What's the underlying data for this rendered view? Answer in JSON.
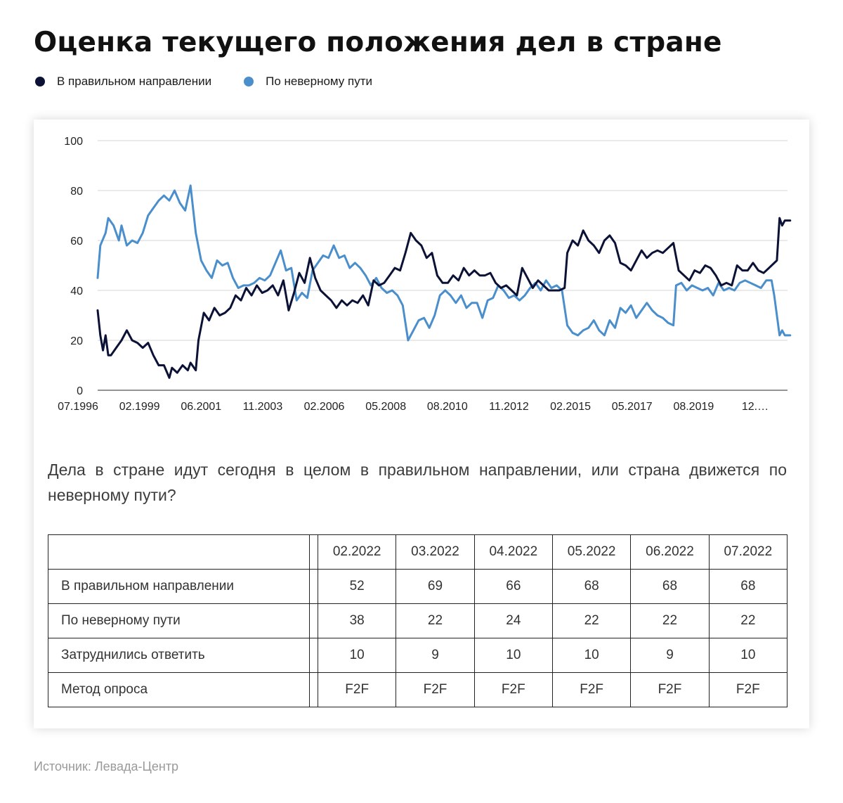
{
  "title": "Оценка текущего положения дел в стране",
  "legend": [
    {
      "label": "В правильном направлении",
      "color": "#0b1235"
    },
    {
      "label": "По неверному пути",
      "color": "#4a8fcc"
    }
  ],
  "chart_data": {
    "type": "line",
    "title": "Оценка текущего положения дел в стране",
    "xlabel": "",
    "ylabel": "",
    "ylim": [
      0,
      100
    ],
    "yticks": [
      "0",
      "20",
      "40",
      "60",
      "80",
      "100"
    ],
    "x_tick_labels": [
      "07.1996",
      "02.1999",
      "06.2001",
      "11.2003",
      "02.2006",
      "05.2008",
      "08.2010",
      "11.2012",
      "02.2015",
      "05.2017",
      "08.2019",
      "12.…"
    ],
    "x_range": [
      "07.1996",
      "07.2022"
    ],
    "grid": true,
    "legend_position": "top-left",
    "series": [
      {
        "name": "В правильном направлении",
        "color": "#0b1235",
        "points": [
          [
            1996.5,
            32
          ],
          [
            1996.6,
            22
          ],
          [
            1996.7,
            16
          ],
          [
            1996.8,
            22
          ],
          [
            1996.9,
            14
          ],
          [
            1997.0,
            14
          ],
          [
            1997.2,
            17
          ],
          [
            1997.4,
            20
          ],
          [
            1997.6,
            24
          ],
          [
            1997.8,
            20
          ],
          [
            1998.0,
            19
          ],
          [
            1998.2,
            17
          ],
          [
            1998.4,
            19
          ],
          [
            1998.6,
            14
          ],
          [
            1998.8,
            10
          ],
          [
            1999.0,
            10
          ],
          [
            1999.2,
            5
          ],
          [
            1999.3,
            9
          ],
          [
            1999.5,
            7
          ],
          [
            1999.7,
            10
          ],
          [
            1999.9,
            8
          ],
          [
            2000.0,
            11
          ],
          [
            2000.2,
            8
          ],
          [
            2000.3,
            20
          ],
          [
            2000.5,
            31
          ],
          [
            2000.7,
            28
          ],
          [
            2000.9,
            33
          ],
          [
            2001.1,
            30
          ],
          [
            2001.3,
            31
          ],
          [
            2001.5,
            33
          ],
          [
            2001.7,
            38
          ],
          [
            2001.9,
            36
          ],
          [
            2002.1,
            41
          ],
          [
            2002.3,
            38
          ],
          [
            2002.5,
            42
          ],
          [
            2002.7,
            39
          ],
          [
            2002.9,
            40
          ],
          [
            2003.1,
            42
          ],
          [
            2003.3,
            38
          ],
          [
            2003.5,
            44
          ],
          [
            2003.7,
            32
          ],
          [
            2003.9,
            39
          ],
          [
            2004.1,
            47
          ],
          [
            2004.3,
            43
          ],
          [
            2004.5,
            53
          ],
          [
            2004.7,
            45
          ],
          [
            2004.9,
            40
          ],
          [
            2005.1,
            38
          ],
          [
            2005.3,
            36
          ],
          [
            2005.5,
            33
          ],
          [
            2005.7,
            36
          ],
          [
            2005.9,
            34
          ],
          [
            2006.1,
            36
          ],
          [
            2006.3,
            35
          ],
          [
            2006.5,
            38
          ],
          [
            2006.7,
            34
          ],
          [
            2006.9,
            44
          ],
          [
            2007.1,
            42
          ],
          [
            2007.3,
            43
          ],
          [
            2007.5,
            46
          ],
          [
            2007.7,
            49
          ],
          [
            2007.9,
            48
          ],
          [
            2008.1,
            55
          ],
          [
            2008.3,
            63
          ],
          [
            2008.5,
            60
          ],
          [
            2008.7,
            58
          ],
          [
            2008.9,
            53
          ],
          [
            2009.1,
            55
          ],
          [
            2009.3,
            46
          ],
          [
            2009.5,
            43
          ],
          [
            2009.7,
            43
          ],
          [
            2009.9,
            46
          ],
          [
            2010.1,
            44
          ],
          [
            2010.3,
            49
          ],
          [
            2010.5,
            46
          ],
          [
            2010.7,
            48
          ],
          [
            2010.9,
            46
          ],
          [
            2011.1,
            46
          ],
          [
            2011.3,
            47
          ],
          [
            2011.5,
            43
          ],
          [
            2011.7,
            41
          ],
          [
            2011.9,
            42
          ],
          [
            2012.1,
            40
          ],
          [
            2012.3,
            38
          ],
          [
            2012.5,
            49
          ],
          [
            2012.7,
            45
          ],
          [
            2012.9,
            41
          ],
          [
            2013.1,
            44
          ],
          [
            2013.3,
            42
          ],
          [
            2013.5,
            40
          ],
          [
            2013.7,
            40
          ],
          [
            2013.9,
            40
          ],
          [
            2014.1,
            41
          ],
          [
            2014.2,
            55
          ],
          [
            2014.4,
            60
          ],
          [
            2014.6,
            58
          ],
          [
            2014.8,
            64
          ],
          [
            2015.0,
            60
          ],
          [
            2015.2,
            58
          ],
          [
            2015.4,
            55
          ],
          [
            2015.6,
            60
          ],
          [
            2015.8,
            62
          ],
          [
            2016.0,
            59
          ],
          [
            2016.2,
            51
          ],
          [
            2016.4,
            50
          ],
          [
            2016.6,
            48
          ],
          [
            2016.8,
            52
          ],
          [
            2017.0,
            56
          ],
          [
            2017.2,
            53
          ],
          [
            2017.4,
            55
          ],
          [
            2017.6,
            56
          ],
          [
            2017.8,
            55
          ],
          [
            2018.0,
            57
          ],
          [
            2018.2,
            59
          ],
          [
            2018.4,
            48
          ],
          [
            2018.6,
            46
          ],
          [
            2018.8,
            44
          ],
          [
            2019.0,
            48
          ],
          [
            2019.2,
            47
          ],
          [
            2019.4,
            50
          ],
          [
            2019.6,
            49
          ],
          [
            2019.8,
            46
          ],
          [
            2020.0,
            42
          ],
          [
            2020.2,
            43
          ],
          [
            2020.4,
            42
          ],
          [
            2020.6,
            50
          ],
          [
            2020.8,
            48
          ],
          [
            2021.0,
            48
          ],
          [
            2021.2,
            51
          ],
          [
            2021.4,
            48
          ],
          [
            2021.6,
            47
          ],
          [
            2021.8,
            49
          ],
          [
            2022.1,
            52
          ],
          [
            2022.2,
            69
          ],
          [
            2022.3,
            66
          ],
          [
            2022.4,
            68
          ],
          [
            2022.5,
            68
          ],
          [
            2022.6,
            68
          ]
        ]
      },
      {
        "name": "По неверному пути",
        "color": "#4a8fcc",
        "points": [
          [
            1996.5,
            45
          ],
          [
            1996.6,
            58
          ],
          [
            1996.8,
            63
          ],
          [
            1996.9,
            69
          ],
          [
            1997.1,
            66
          ],
          [
            1997.3,
            60
          ],
          [
            1997.4,
            66
          ],
          [
            1997.6,
            58
          ],
          [
            1997.8,
            60
          ],
          [
            1998.0,
            59
          ],
          [
            1998.2,
            63
          ],
          [
            1998.4,
            70
          ],
          [
            1998.6,
            73
          ],
          [
            1998.8,
            76
          ],
          [
            1999.0,
            78
          ],
          [
            1999.2,
            76
          ],
          [
            1999.4,
            80
          ],
          [
            1999.6,
            75
          ],
          [
            1999.8,
            72
          ],
          [
            2000.0,
            82
          ],
          [
            2000.2,
            63
          ],
          [
            2000.4,
            52
          ],
          [
            2000.6,
            48
          ],
          [
            2000.8,
            45
          ],
          [
            2001.0,
            52
          ],
          [
            2001.2,
            50
          ],
          [
            2001.4,
            51
          ],
          [
            2001.6,
            45
          ],
          [
            2001.8,
            41
          ],
          [
            2002.0,
            42
          ],
          [
            2002.2,
            42
          ],
          [
            2002.4,
            43
          ],
          [
            2002.6,
            45
          ],
          [
            2002.8,
            44
          ],
          [
            2003.0,
            46
          ],
          [
            2003.2,
            51
          ],
          [
            2003.4,
            56
          ],
          [
            2003.6,
            48
          ],
          [
            2003.8,
            49
          ],
          [
            2004.0,
            36
          ],
          [
            2004.2,
            39
          ],
          [
            2004.4,
            37
          ],
          [
            2004.6,
            48
          ],
          [
            2004.8,
            51
          ],
          [
            2005.0,
            54
          ],
          [
            2005.2,
            53
          ],
          [
            2005.4,
            58
          ],
          [
            2005.6,
            53
          ],
          [
            2005.8,
            54
          ],
          [
            2006.0,
            49
          ],
          [
            2006.2,
            51
          ],
          [
            2006.4,
            49
          ],
          [
            2006.6,
            46
          ],
          [
            2006.8,
            42
          ],
          [
            2007.0,
            45
          ],
          [
            2007.2,
            41
          ],
          [
            2007.4,
            39
          ],
          [
            2007.6,
            40
          ],
          [
            2007.8,
            38
          ],
          [
            2008.0,
            34
          ],
          [
            2008.2,
            20
          ],
          [
            2008.4,
            24
          ],
          [
            2008.6,
            28
          ],
          [
            2008.8,
            29
          ],
          [
            2009.0,
            25
          ],
          [
            2009.2,
            30
          ],
          [
            2009.4,
            38
          ],
          [
            2009.6,
            40
          ],
          [
            2009.8,
            38
          ],
          [
            2010.0,
            35
          ],
          [
            2010.2,
            38
          ],
          [
            2010.4,
            33
          ],
          [
            2010.6,
            35
          ],
          [
            2010.8,
            35
          ],
          [
            2011.0,
            29
          ],
          [
            2011.2,
            36
          ],
          [
            2011.4,
            37
          ],
          [
            2011.6,
            42
          ],
          [
            2011.8,
            40
          ],
          [
            2012.0,
            37
          ],
          [
            2012.2,
            38
          ],
          [
            2012.4,
            36
          ],
          [
            2012.6,
            38
          ],
          [
            2012.8,
            41
          ],
          [
            2013.0,
            43
          ],
          [
            2013.2,
            40
          ],
          [
            2013.4,
            44
          ],
          [
            2013.6,
            41
          ],
          [
            2013.8,
            42
          ],
          [
            2014.0,
            40
          ],
          [
            2014.2,
            26
          ],
          [
            2014.4,
            23
          ],
          [
            2014.6,
            22
          ],
          [
            2014.8,
            24
          ],
          [
            2015.0,
            25
          ],
          [
            2015.2,
            28
          ],
          [
            2015.4,
            24
          ],
          [
            2015.6,
            22
          ],
          [
            2015.8,
            28
          ],
          [
            2016.0,
            25
          ],
          [
            2016.2,
            33
          ],
          [
            2016.4,
            31
          ],
          [
            2016.6,
            34
          ],
          [
            2016.8,
            29
          ],
          [
            2017.0,
            32
          ],
          [
            2017.2,
            35
          ],
          [
            2017.4,
            32
          ],
          [
            2017.6,
            30
          ],
          [
            2017.8,
            29
          ],
          [
            2018.0,
            27
          ],
          [
            2018.2,
            26
          ],
          [
            2018.3,
            42
          ],
          [
            2018.5,
            43
          ],
          [
            2018.7,
            40
          ],
          [
            2018.9,
            42
          ],
          [
            2019.1,
            41
          ],
          [
            2019.3,
            40
          ],
          [
            2019.5,
            41
          ],
          [
            2019.7,
            38
          ],
          [
            2019.9,
            43
          ],
          [
            2020.1,
            40
          ],
          [
            2020.3,
            41
          ],
          [
            2020.5,
            40
          ],
          [
            2020.7,
            43
          ],
          [
            2020.9,
            44
          ],
          [
            2021.1,
            43
          ],
          [
            2021.3,
            42
          ],
          [
            2021.5,
            41
          ],
          [
            2021.7,
            44
          ],
          [
            2021.9,
            44
          ],
          [
            2022.0,
            38
          ],
          [
            2022.2,
            22
          ],
          [
            2022.3,
            24
          ],
          [
            2022.4,
            22
          ],
          [
            2022.5,
            22
          ],
          [
            2022.6,
            22
          ]
        ]
      }
    ]
  },
  "question": "Дела в стране идут сегодня в целом в правильном направлении, или страна движется по неверному пути?",
  "table": {
    "columns": [
      "02.2022",
      "03.2022",
      "04.2022",
      "05.2022",
      "06.2022",
      "07.2022"
    ],
    "rows": [
      {
        "label": "В правильном направлении",
        "values": [
          "52",
          "69",
          "66",
          "68",
          "68",
          "68"
        ]
      },
      {
        "label": "По неверному пути",
        "values": [
          "38",
          "22",
          "24",
          "22",
          "22",
          "22"
        ]
      },
      {
        "label": "Затруднились ответить",
        "values": [
          "10",
          "9",
          "10",
          "10",
          "9",
          "10"
        ]
      },
      {
        "label": "Метод опроса",
        "values": [
          "F2F",
          "F2F",
          "F2F",
          "F2F",
          "F2F",
          "F2F"
        ]
      }
    ]
  },
  "source": "Источник: Левада-Центр"
}
